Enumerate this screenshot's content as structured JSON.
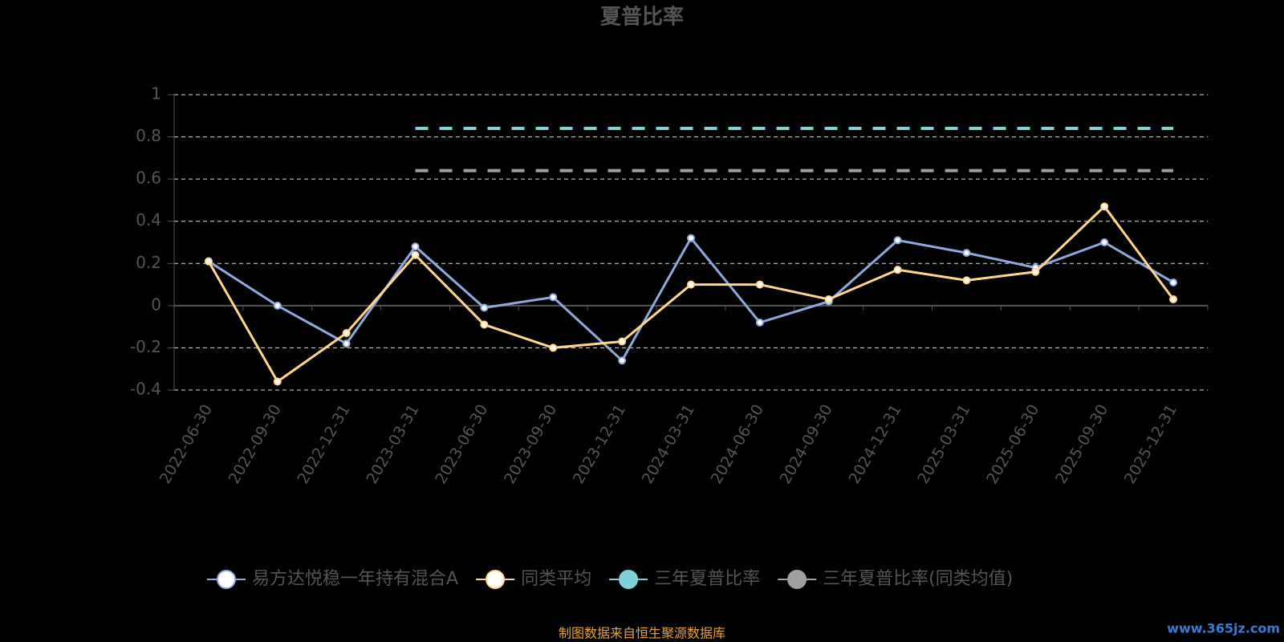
{
  "chart_data": {
    "type": "line",
    "title": "夏普比率",
    "categories": [
      "2022-06-30",
      "2022-09-30",
      "2022-12-31",
      "2023-03-31",
      "2023-06-30",
      "2023-09-30",
      "2023-12-31",
      "2024-03-31",
      "2024-06-30",
      "2024-09-30",
      "2024-12-31",
      "2025-03-31",
      "2025-06-30",
      "2025-09-30",
      "2025-12-31"
    ],
    "series": [
      {
        "name": "易方达悦稳一年持有混合A",
        "color": "#8fa9dc",
        "line_style": "solid",
        "values": [
          0.21,
          0.0,
          -0.18,
          0.28,
          -0.01,
          0.04,
          -0.26,
          0.32,
          -0.08,
          0.02,
          0.31,
          0.25,
          0.18,
          0.3,
          0.11
        ]
      },
      {
        "name": "同类平均",
        "color": "#ffd68a",
        "line_style": "solid",
        "values": [
          0.21,
          -0.36,
          -0.13,
          0.24,
          -0.09,
          -0.2,
          -0.17,
          0.1,
          0.1,
          0.03,
          0.17,
          0.12,
          0.16,
          0.47,
          0.03
        ]
      },
      {
        "name": "三年夏普比率",
        "color": "#7fd3d8",
        "line_style": "dashed",
        "values": [
          null,
          null,
          null,
          0.84,
          0.84,
          0.84,
          0.84,
          0.84,
          0.84,
          0.84,
          0.84,
          0.84,
          0.84,
          0.84,
          0.84
        ]
      },
      {
        "name": "三年夏普比率(同类均值)",
        "color": "#a0a0a0",
        "line_style": "dashed",
        "values": [
          null,
          null,
          null,
          0.64,
          0.64,
          0.64,
          0.64,
          0.64,
          0.64,
          0.64,
          0.64,
          0.64,
          0.64,
          0.64,
          0.64
        ]
      }
    ],
    "ylim": [
      -0.4,
      1
    ],
    "yticks": [
      -0.4,
      -0.2,
      0,
      0.2,
      0.4,
      0.6,
      0.8,
      1
    ],
    "grid": true,
    "legend": "bottom",
    "footer": "制图数据来自恒生聚源数据库",
    "watermark": "www.365jz.com"
  }
}
